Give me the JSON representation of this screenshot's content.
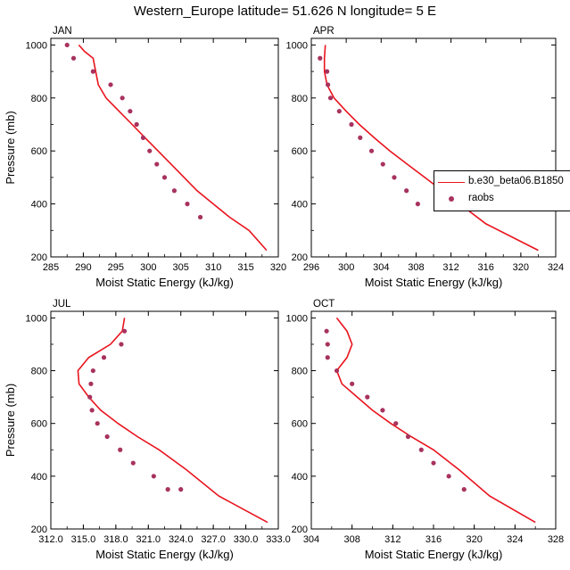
{
  "title": "Western_Europe  latitude= 51.626 N longitude= 5 E",
  "legend": {
    "model_label": "b.e30_beta06.B1850",
    "obs_label": "raobs",
    "model_color": "#e8141e",
    "obs_color": "#a8325e"
  },
  "chart_data": [
    {
      "type": "line",
      "panel_label": "JAN",
      "xlabel": "Moist Static Energy (kJ/kg)",
      "ylabel": "Pressure (mb)",
      "xlim": [
        285,
        320
      ],
      "xticks": [
        285,
        290,
        295,
        300,
        305,
        310,
        315,
        320
      ],
      "xtick_labels": [
        "285",
        "290",
        "295",
        "300",
        "305",
        "310",
        "315",
        "320"
      ],
      "ylim": [
        1025,
        200
      ],
      "yticks": [
        200,
        400,
        600,
        800,
        1000
      ],
      "series": [
        {
          "kind": "line",
          "x": [
            289.3,
            290.2,
            291.5,
            292.3,
            293.5,
            295.5,
            297.5,
            299.5,
            301.5,
            303.5,
            305.5,
            307.5,
            310.0,
            312.5,
            315.5,
            318.2
          ],
          "y": [
            1000,
            975,
            950,
            850,
            800,
            750,
            700,
            650,
            600,
            550,
            500,
            450,
            400,
            350,
            300,
            225
          ]
        },
        {
          "kind": "scatter",
          "x": [
            287.5,
            288.5,
            291.5,
            294.2,
            296.0,
            297.2,
            298.2,
            299.2,
            300.2,
            301.3,
            302.5,
            304.0,
            306.0,
            308.0
          ],
          "y": [
            1000,
            950,
            900,
            850,
            800,
            750,
            700,
            650,
            600,
            550,
            500,
            450,
            400,
            350
          ]
        }
      ]
    },
    {
      "type": "line",
      "panel_label": "APR",
      "xlabel": "Moist Static Energy (kJ/kg)",
      "ylabel": "",
      "xlim": [
        296,
        324
      ],
      "xticks": [
        296,
        300,
        304,
        308,
        312,
        316,
        320,
        324
      ],
      "xtick_labels": [
        "296",
        "300",
        "304",
        "308",
        "312",
        "316",
        "320",
        "324"
      ],
      "ylim": [
        1025,
        200
      ],
      "yticks": [
        200,
        400,
        600,
        800,
        1000
      ],
      "series": [
        {
          "kind": "line",
          "x": [
            297.6,
            297.5,
            297.5,
            297.8,
            298.6,
            300.0,
            301.5,
            303.2,
            305.0,
            307.0,
            309.0,
            312.0,
            316.0,
            322.0
          ],
          "y": [
            1000,
            950,
            900,
            850,
            800,
            750,
            700,
            650,
            600,
            550,
            500,
            425,
            325,
            225
          ]
        },
        {
          "kind": "scatter",
          "x": [
            297.0,
            297.8,
            297.9,
            298.2,
            299.2,
            300.6,
            301.6,
            302.9,
            304.2,
            305.5,
            306.9,
            308.2
          ],
          "y": [
            950,
            900,
            850,
            800,
            750,
            700,
            650,
            600,
            550,
            500,
            450,
            400
          ]
        }
      ]
    },
    {
      "type": "line",
      "panel_label": "JUL",
      "xlabel": "Moist Static Energy (kJ/kg)",
      "ylabel": "Pressure (mb)",
      "xlim": [
        312,
        333
      ],
      "xticks": [
        312,
        315,
        318,
        321,
        324,
        327,
        330,
        333
      ],
      "xtick_labels": [
        "312.0",
        "315.0",
        "318.0",
        "321.0",
        "324.0",
        "327.0",
        "330.0",
        "333.0"
      ],
      "ylim": [
        1025,
        200
      ],
      "yticks": [
        200,
        400,
        600,
        800,
        1000
      ],
      "series": [
        {
          "kind": "line",
          "x": [
            318.8,
            318.6,
            317.5,
            315.5,
            314.5,
            314.6,
            315.5,
            316.6,
            318.2,
            320.0,
            322.0,
            324.5,
            327.5,
            332.0
          ],
          "y": [
            1000,
            950,
            900,
            850,
            800,
            750,
            700,
            650,
            600,
            550,
            500,
            425,
            325,
            225
          ]
        },
        {
          "kind": "scatter",
          "x": [
            318.8,
            318.5,
            316.9,
            315.9,
            315.7,
            315.6,
            315.8,
            316.3,
            317.2,
            318.4,
            319.6,
            321.5,
            322.8,
            324.0
          ],
          "y": [
            950,
            900,
            850,
            800,
            750,
            700,
            650,
            600,
            550,
            500,
            450,
            400,
            350,
            350
          ]
        }
      ]
    },
    {
      "type": "line",
      "panel_label": "OCT",
      "xlabel": "Moist Static Energy (kJ/kg)",
      "ylabel": "",
      "xlim": [
        304,
        328
      ],
      "xticks": [
        304,
        308,
        312,
        316,
        320,
        324,
        328
      ],
      "xtick_labels": [
        "304",
        "308",
        "312",
        "316",
        "320",
        "324",
        "328"
      ],
      "ylim": [
        1025,
        200
      ],
      "yticks": [
        200,
        400,
        600,
        800,
        1000
      ],
      "series": [
        {
          "kind": "line",
          "x": [
            306.5,
            307.5,
            308.0,
            307.5,
            306.5,
            307.0,
            308.5,
            310.0,
            311.8,
            313.8,
            316.0,
            318.5,
            321.5,
            326.0
          ],
          "y": [
            1000,
            950,
            900,
            850,
            800,
            750,
            700,
            650,
            600,
            550,
            500,
            425,
            325,
            225
          ]
        },
        {
          "kind": "scatter",
          "x": [
            305.5,
            305.6,
            305.6,
            306.5,
            308.0,
            309.5,
            311.0,
            312.3,
            313.5,
            314.8,
            316.0,
            317.5,
            319.0
          ],
          "y": [
            950,
            900,
            850,
            800,
            750,
            700,
            650,
            600,
            550,
            500,
            450,
            400,
            350
          ]
        }
      ]
    }
  ]
}
